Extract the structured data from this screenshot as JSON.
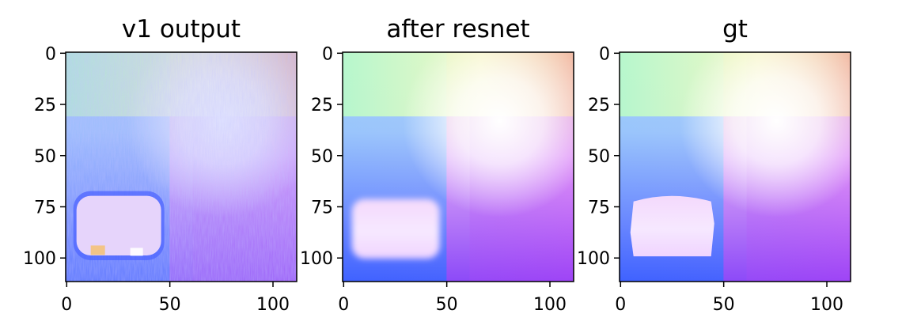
{
  "chart_data": [
    {
      "type": "heatmap",
      "title": "v1 output",
      "xlim": [
        -0.5,
        111.5
      ],
      "ylim": [
        111.5,
        -0.5
      ],
      "xticks": [
        0,
        50,
        100
      ],
      "yticks": [
        0,
        25,
        50,
        75,
        100
      ],
      "xtick_labels": [
        "0",
        "50",
        "100"
      ],
      "ytick_labels": [
        "0",
        "25",
        "50",
        "75",
        "100"
      ],
      "image_size": [
        112,
        112
      ],
      "content": "noisy normal-map prediction"
    },
    {
      "type": "heatmap",
      "title": "after resnet",
      "xlim": [
        -0.5,
        111.5
      ],
      "ylim": [
        111.5,
        -0.5
      ],
      "xticks": [
        0,
        50,
        100
      ],
      "yticks": [
        0,
        25,
        50,
        75,
        100
      ],
      "xtick_labels": [
        "0",
        "50",
        "100"
      ],
      "ytick_labels": [
        "0",
        "25",
        "50",
        "75",
        "100"
      ],
      "image_size": [
        112,
        112
      ],
      "content": "smoothed normal-map prediction"
    },
    {
      "type": "heatmap",
      "title": "gt",
      "xlim": [
        -0.5,
        111.5
      ],
      "ylim": [
        111.5,
        -0.5
      ],
      "xticks": [
        0,
        50,
        100
      ],
      "yticks": [
        0,
        25,
        50,
        75,
        100
      ],
      "xtick_labels": [
        "0",
        "50",
        "100"
      ],
      "ytick_labels": [
        "0",
        "25",
        "50",
        "75",
        "100"
      ],
      "image_size": [
        112,
        112
      ],
      "content": "ground-truth normal map"
    }
  ],
  "colors": {
    "top_left": "#b9fbc8",
    "top_mid": "#f8fcc0",
    "top_right": "#f4bfa6",
    "center": "#ffffff",
    "left_mid": "#b3e8f8",
    "bottom_left": "#3f62ff",
    "bottom_right": "#9e44f6",
    "right_mid": "#f0a8f8",
    "blob": "#f2dcff"
  }
}
